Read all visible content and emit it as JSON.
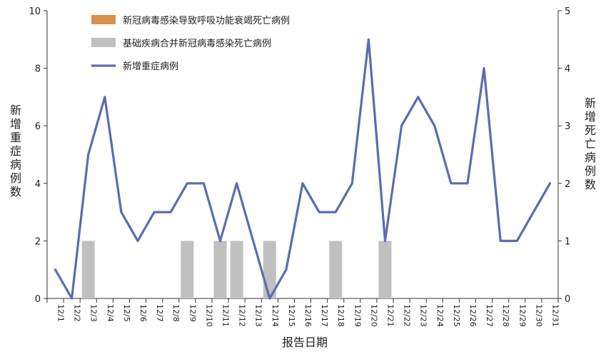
{
  "chart_data": {
    "type": "bar+line",
    "categories": [
      "12/1",
      "12/2",
      "12/3",
      "12/4",
      "12/5",
      "12/6",
      "12/7",
      "12/8",
      "12/9",
      "12/10",
      "12/11",
      "12/12",
      "12/13",
      "12/14",
      "12/15",
      "12/16",
      "12/17",
      "12/18",
      "12/19",
      "12/20",
      "12/21",
      "12/22",
      "12/23",
      "12/24",
      "12/25",
      "12/26",
      "12/27",
      "12/28",
      "12/29",
      "12/30",
      "12/31"
    ],
    "series": [
      {
        "name": "新冠病毒感染导致呼吸功能衰竭死亡病例",
        "kind": "bar",
        "axis": "right",
        "color": "#d4924a",
        "values": [
          0,
          0,
          0,
          0,
          0,
          0,
          0,
          0,
          0,
          0,
          0,
          0,
          0,
          0,
          0,
          0,
          0,
          0,
          0,
          0,
          0,
          0,
          0,
          0,
          0,
          0,
          0,
          0,
          0,
          0,
          0
        ]
      },
      {
        "name": "基础疾病合并新冠病毒感染死亡病例",
        "kind": "bar",
        "axis": "right",
        "color": "#c0c0c0",
        "values": [
          0,
          0,
          1,
          0,
          0,
          0,
          0,
          0,
          1,
          0,
          1,
          1,
          0,
          1,
          0,
          0,
          0,
          1,
          0,
          0,
          1,
          0,
          0,
          0,
          0,
          0,
          0,
          0,
          0,
          0,
          0
        ]
      },
      {
        "name": "新增重症病例",
        "kind": "line",
        "axis": "left",
        "color": "#5b6cb0",
        "values": [
          1,
          0,
          5,
          7,
          3,
          2,
          3,
          3,
          4,
          4,
          2,
          4,
          2,
          0,
          1,
          4,
          3,
          3,
          4,
          9,
          2,
          6,
          7,
          6,
          4,
          4,
          8,
          2,
          2,
          3,
          4
        ]
      }
    ],
    "xlabel": "报告日期",
    "ylabel": "新增重症病例数",
    "y2label": "新增死亡病例数",
    "ylim": [
      0,
      10
    ],
    "y2lim": [
      0,
      5
    ],
    "yticks": [
      "0",
      "2",
      "4",
      "6",
      "8",
      "10"
    ],
    "y2ticks": [
      "0",
      "1",
      "2",
      "3",
      "4",
      "5"
    ],
    "grid": false,
    "legend_position": "top-left"
  }
}
